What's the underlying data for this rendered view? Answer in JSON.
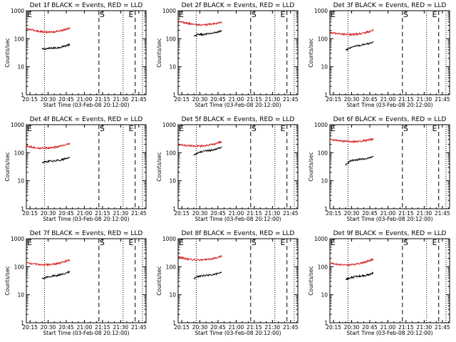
{
  "colors": {
    "events": "#000000",
    "lld": "#d42020",
    "axis": "#000000",
    "background": "#ffffff"
  },
  "x_tick_labels": [
    "20:15",
    "20:30",
    "20:45",
    "21:00",
    "21:15",
    "21:30",
    "21:45"
  ],
  "y_tick_labels": [
    "1",
    "10",
    "100",
    "1000"
  ],
  "chart_data": [
    {
      "type": "line",
      "title": "Det 1f BLACK = Events, RED = LLD",
      "xlabel": "Start Time (03-Feb-08 20:12:00)",
      "ylabel": "Counts/sec",
      "yscale": "log",
      "ylim": [
        1,
        1000
      ],
      "xlim": [
        "20:12",
        "21:51"
      ],
      "markers": [
        {
          "label": "E",
          "time": "20:12"
        },
        {
          "label": "S",
          "time": "21:12"
        },
        {
          "label": "E",
          "time": "21:36"
        }
      ],
      "vlines": [
        {
          "time": "20:27",
          "style": "dotted"
        },
        {
          "time": "21:12",
          "style": "dashed"
        },
        {
          "time": "21:32",
          "style": "dotted"
        },
        {
          "time": "21:42",
          "style": "dashed"
        },
        {
          "time": "21:48",
          "style": "dotted"
        }
      ],
      "series": [
        {
          "color": "#000000",
          "start": "20:25",
          "end": "20:48",
          "values": [
            42,
            44,
            46,
            47,
            50,
            56,
            62
          ]
        },
        {
          "color": "#d42020",
          "start": "20:12",
          "end": "20:48",
          "values": [
            225,
            200,
            180,
            172,
            178,
            198,
            240
          ]
        }
      ]
    },
    {
      "type": "line",
      "title": "Det 2f BLACK = Events, RED = LLD",
      "xlabel": "Start Time (03-Feb-08 20:12:00)",
      "ylabel": "Counts/sec",
      "yscale": "log",
      "ylim": [
        1,
        1000
      ],
      "xlim": [
        "20:12",
        "21:51"
      ],
      "markers": [
        {
          "label": "E",
          "time": "20:12"
        },
        {
          "label": "S",
          "time": "21:12"
        },
        {
          "label": "E",
          "time": "21:36"
        }
      ],
      "vlines": [
        {
          "time": "20:27",
          "style": "dotted"
        },
        {
          "time": "21:12",
          "style": "dashed"
        },
        {
          "time": "21:32",
          "style": "dotted"
        },
        {
          "time": "21:42",
          "style": "dashed"
        },
        {
          "time": "21:48",
          "style": "dotted"
        }
      ],
      "series": [
        {
          "color": "#000000",
          "start": "20:25",
          "end": "20:48",
          "values": [
            120,
            145,
            140,
            148,
            158,
            172,
            190
          ]
        },
        {
          "color": "#d42020",
          "start": "20:12",
          "end": "20:48",
          "values": [
            420,
            370,
            330,
            310,
            320,
            345,
            390
          ]
        }
      ]
    },
    {
      "type": "line",
      "title": "Det 3f BLACK = Events, RED = LLD",
      "xlabel": "Start Time (03-Feb-08 20:12:00)",
      "ylabel": "Counts/sec",
      "yscale": "log",
      "ylim": [
        1,
        1000
      ],
      "xlim": [
        "20:12",
        "21:51"
      ],
      "markers": [
        {
          "label": "E",
          "time": "20:12"
        },
        {
          "label": "S",
          "time": "21:12"
        },
        {
          "label": "E",
          "time": "21:36"
        }
      ],
      "vlines": [
        {
          "time": "20:27",
          "style": "dotted"
        },
        {
          "time": "21:12",
          "style": "dashed"
        },
        {
          "time": "21:32",
          "style": "dotted"
        },
        {
          "time": "21:42",
          "style": "dashed"
        },
        {
          "time": "21:48",
          "style": "dotted"
        }
      ],
      "series": [
        {
          "color": "#000000",
          "start": "20:25",
          "end": "20:48",
          "values": [
            38,
            48,
            55,
            58,
            62,
            68,
            78
          ]
        },
        {
          "color": "#d42020",
          "start": "20:12",
          "end": "20:48",
          "values": [
            165,
            152,
            145,
            142,
            148,
            165,
            205
          ]
        }
      ]
    },
    {
      "type": "line",
      "title": "Det 4f BLACK = Events, RED = LLD",
      "xlabel": "Start Time (03-Feb-08 20:12:00)",
      "ylabel": "Counts/sec",
      "yscale": "log",
      "ylim": [
        1,
        1000
      ],
      "xlim": [
        "20:12",
        "21:51"
      ],
      "markers": [
        {
          "label": "E",
          "time": "20:12"
        },
        {
          "label": "S",
          "time": "21:12"
        },
        {
          "label": "E",
          "time": "21:36"
        }
      ],
      "vlines": [
        {
          "time": "20:27",
          "style": "dotted"
        },
        {
          "time": "21:12",
          "style": "dashed"
        },
        {
          "time": "21:32",
          "style": "dotted"
        },
        {
          "time": "21:42",
          "style": "dashed"
        },
        {
          "time": "21:48",
          "style": "dotted"
        }
      ],
      "series": [
        {
          "color": "#000000",
          "start": "20:25",
          "end": "20:48",
          "values": [
            45,
            48,
            50,
            52,
            55,
            60,
            68
          ]
        },
        {
          "color": "#d42020",
          "start": "20:12",
          "end": "20:48",
          "values": [
            175,
            155,
            145,
            148,
            158,
            180,
            215
          ]
        }
      ]
    },
    {
      "type": "line",
      "title": "Det 5f BLACK = Events, RED = LLD",
      "xlabel": "Start Time (03-Feb-08 20:12:00)",
      "ylabel": "Counts/sec",
      "yscale": "log",
      "ylim": [
        1,
        1000
      ],
      "xlim": [
        "20:12",
        "21:51"
      ],
      "markers": [
        {
          "label": "E",
          "time": "20:12"
        },
        {
          "label": "S",
          "time": "21:12"
        },
        {
          "label": "E",
          "time": "21:36"
        }
      ],
      "vlines": [
        {
          "time": "20:27",
          "style": "dotted"
        },
        {
          "time": "21:12",
          "style": "dashed"
        },
        {
          "time": "21:32",
          "style": "dotted"
        },
        {
          "time": "21:42",
          "style": "dashed"
        },
        {
          "time": "21:48",
          "style": "dotted"
        }
      ],
      "series": [
        {
          "color": "#000000",
          "start": "20:25",
          "end": "20:48",
          "values": [
            85,
            100,
            110,
            118,
            125,
            140,
            160
          ]
        },
        {
          "color": "#d42020",
          "start": "20:12",
          "end": "20:48",
          "values": [
            195,
            182,
            175,
            172,
            182,
            205,
            250
          ]
        }
      ]
    },
    {
      "type": "line",
      "title": "Det 6f BLACK = Events, RED = LLD",
      "xlabel": "Start Time (03-Feb-08 20:12:00)",
      "ylabel": "Counts/sec",
      "yscale": "log",
      "ylim": [
        1,
        1000
      ],
      "xlim": [
        "20:12",
        "21:51"
      ],
      "markers": [
        {
          "label": "E",
          "time": "20:12"
        },
        {
          "label": "S",
          "time": "21:12"
        },
        {
          "label": "E",
          "time": "21:36"
        }
      ],
      "vlines": [
        {
          "time": "20:27",
          "style": "dotted"
        },
        {
          "time": "21:12",
          "style": "dashed"
        },
        {
          "time": "21:32",
          "style": "dotted"
        },
        {
          "time": "21:42",
          "style": "dashed"
        },
        {
          "time": "21:48",
          "style": "dotted"
        }
      ],
      "series": [
        {
          "color": "#000000",
          "start": "20:25",
          "end": "20:48",
          "values": [
            38,
            50,
            55,
            57,
            60,
            65,
            72
          ]
        },
        {
          "color": "#d42020",
          "start": "20:12",
          "end": "20:48",
          "values": [
            300,
            275,
            255,
            245,
            255,
            275,
            305
          ]
        }
      ]
    },
    {
      "type": "line",
      "title": "Det 7f BLACK = Events, RED = LLD",
      "xlabel": "Start Time (03-Feb-08 20:12:00)",
      "ylabel": "Counts/sec",
      "yscale": "log",
      "ylim": [
        1,
        1000
      ],
      "xlim": [
        "20:12",
        "21:51"
      ],
      "markers": [
        {
          "label": "E",
          "time": "20:12"
        },
        {
          "label": "S",
          "time": "21:12"
        },
        {
          "label": "E",
          "time": "21:36"
        }
      ],
      "vlines": [
        {
          "time": "20:27",
          "style": "dotted"
        },
        {
          "time": "21:12",
          "style": "dashed"
        },
        {
          "time": "21:32",
          "style": "dotted"
        },
        {
          "time": "21:42",
          "style": "dashed"
        },
        {
          "time": "21:48",
          "style": "dotted"
        }
      ],
      "series": [
        {
          "color": "#000000",
          "start": "20:25",
          "end": "20:48",
          "values": [
            36,
            42,
            46,
            48,
            52,
            58,
            66
          ]
        },
        {
          "color": "#d42020",
          "start": "20:12",
          "end": "20:48",
          "values": [
            140,
            125,
            118,
            118,
            125,
            145,
            175
          ]
        }
      ]
    },
    {
      "type": "line",
      "title": "Det 8f BLACK = Events, RED = LLD",
      "xlabel": "Start Time (03-Feb-08 20:12:00)",
      "ylabel": "Counts/sec",
      "yscale": "log",
      "ylim": [
        1,
        1000
      ],
      "xlim": [
        "20:12",
        "21:51"
      ],
      "markers": [
        {
          "label": "E",
          "time": "20:12"
        },
        {
          "label": "S",
          "time": "21:12"
        },
        {
          "label": "E",
          "time": "21:36"
        }
      ],
      "vlines": [
        {
          "time": "20:27",
          "style": "dotted"
        },
        {
          "time": "21:12",
          "style": "dashed"
        },
        {
          "time": "21:32",
          "style": "dotted"
        },
        {
          "time": "21:42",
          "style": "dashed"
        },
        {
          "time": "21:48",
          "style": "dotted"
        }
      ],
      "series": [
        {
          "color": "#000000",
          "start": "20:25",
          "end": "20:48",
          "values": [
            38,
            45,
            48,
            50,
            52,
            56,
            62
          ]
        },
        {
          "color": "#d42020",
          "start": "20:12",
          "end": "20:48",
          "values": [
            220,
            195,
            178,
            172,
            180,
            200,
            235
          ]
        }
      ]
    },
    {
      "type": "line",
      "title": "Det 9f BLACK = Events, RED = LLD",
      "xlabel": "Start Time (03-Feb-08 20:12:00)",
      "ylabel": "Counts/sec",
      "yscale": "log",
      "ylim": [
        1,
        1000
      ],
      "xlim": [
        "20:12",
        "21:51"
      ],
      "markers": [
        {
          "label": "E",
          "time": "20:12"
        },
        {
          "label": "S",
          "time": "21:12"
        },
        {
          "label": "E",
          "time": "21:36"
        }
      ],
      "vlines": [
        {
          "time": "20:27",
          "style": "dotted"
        },
        {
          "time": "21:12",
          "style": "dashed"
        },
        {
          "time": "21:32",
          "style": "dotted"
        },
        {
          "time": "21:42",
          "style": "dashed"
        },
        {
          "time": "21:48",
          "style": "dotted"
        }
      ],
      "series": [
        {
          "color": "#000000",
          "start": "20:25",
          "end": "20:48",
          "values": [
            35,
            40,
            44,
            46,
            48,
            52,
            60
          ]
        },
        {
          "color": "#d42020",
          "start": "20:12",
          "end": "20:48",
          "values": [
            135,
            120,
            115,
            118,
            128,
            150,
            185
          ]
        }
      ]
    }
  ]
}
